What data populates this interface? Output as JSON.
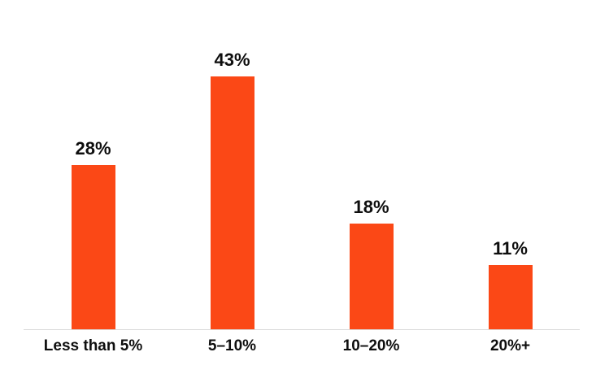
{
  "chart_data": {
    "type": "bar",
    "categories": [
      "Less than 5%",
      "5–10%",
      "10–20%",
      "20%+"
    ],
    "values": [
      28,
      43,
      18,
      11
    ],
    "value_labels": [
      "28%",
      "43%",
      "18%",
      "11%"
    ],
    "title": "",
    "xlabel": "",
    "ylabel": "",
    "ylim": [
      0,
      45
    ],
    "grid": false,
    "legend": false,
    "bar_color": "#fb4816",
    "axis_line_color": "#d9d9d9",
    "label_color": "#0e0e0e",
    "background_color": "#ffffff"
  }
}
